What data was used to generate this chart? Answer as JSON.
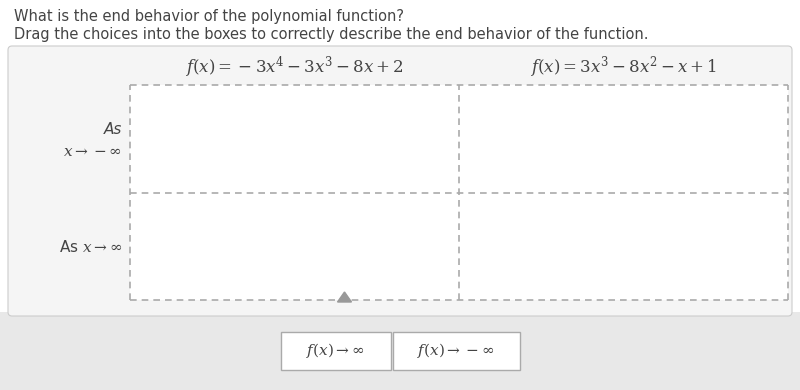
{
  "title_line1": "What is the end behavior of the polynomial function?",
  "title_line2": "Drag the choices into the boxes to correctly describe the end behavior of the function.",
  "func1_latex": "$f(x) = -3x^4 - 3x^3 - 8x + 2$",
  "func2_latex": "$f(x) = 3x^3 - 8x^2 - x + 1$",
  "row1_label_line1": "As",
  "row1_label_line2": "$x \\rightarrow -\\infty$",
  "row2_label": "As $x \\rightarrow \\infty$",
  "choice1_latex": "$f(x) \\rightarrow \\infty$",
  "choice2_latex": "$f(x) \\rightarrow -\\infty$",
  "bg_color": "#ffffff",
  "outer_box_facecolor": "#f5f5f5",
  "outer_box_edgecolor": "#cccccc",
  "bottom_strip_color": "#e8e8e8",
  "dashed_color": "#aaaaaa",
  "choice_box_facecolor": "#ffffff",
  "choice_box_edgecolor": "#aaaaaa",
  "text_color": "#444444",
  "title_fontsize": 10.5,
  "func_fontsize": 12,
  "label_fontsize": 11,
  "choice_fontsize": 11
}
